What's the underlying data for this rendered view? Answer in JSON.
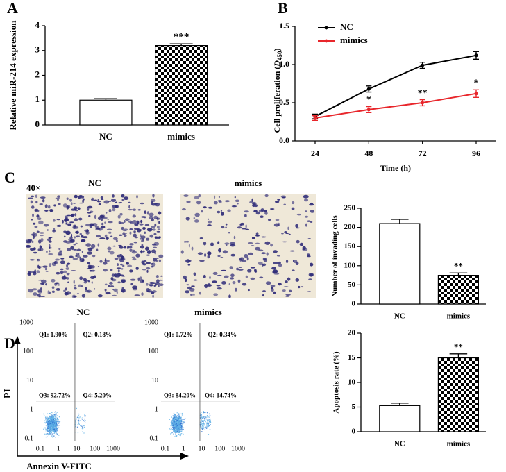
{
  "chart_data": [
    {
      "panel": "A",
      "type": "bar",
      "y_label": "Relative miR-214 expression",
      "categories": [
        "NC",
        "mimics"
      ],
      "values": [
        1.0,
        3.2
      ],
      "errors": [
        0.06,
        0.07
      ],
      "significance": [
        null,
        "***"
      ],
      "fills": [
        "white",
        "checkerboard"
      ],
      "ylim": [
        0,
        4
      ],
      "yticks": [
        0,
        1,
        2,
        3,
        4
      ]
    },
    {
      "panel": "B",
      "type": "line",
      "x_label": "Time (h)",
      "y_label": [
        "Cell proliferation (",
        "D",
        "450",
        ")"
      ],
      "x": [
        24,
        48,
        72,
        96
      ],
      "xlim": [
        15,
        105
      ],
      "xticks": [
        24,
        48,
        72,
        96
      ],
      "ylim": [
        0,
        1.5
      ],
      "yticks": [
        {
          "value": 0,
          "label": "0.0"
        },
        0.5,
        {
          "value": 1,
          "label": "1.0"
        },
        1.5
      ],
      "legend": "upper-left",
      "series": [
        {
          "name": "NC",
          "color": "#000000",
          "values": [
            0.32,
            0.68,
            0.99,
            1.12
          ],
          "errors": [
            0.03,
            0.04,
            0.04,
            0.05
          ]
        },
        {
          "name": "mimics",
          "color": "#e8262b",
          "values": [
            0.3,
            0.41,
            0.5,
            0.62
          ],
          "errors": [
            0.03,
            0.04,
            0.04,
            0.05
          ],
          "significance": [
            null,
            "*",
            "**",
            "*"
          ]
        }
      ]
    },
    {
      "panel": "C",
      "type": "micrographs",
      "magnification": "40×",
      "titles": [
        "NC",
        "mimics"
      ]
    },
    {
      "type": "bar",
      "y_label": "Number of invading cells",
      "categories": [
        "NC",
        "mimics"
      ],
      "values": [
        210,
        75
      ],
      "errors": [
        11,
        6
      ],
      "significance": [
        null,
        "**"
      ],
      "fills": [
        "white",
        "checkerboard"
      ],
      "ylim": [
        0,
        250
      ],
      "yticks": [
        0,
        50,
        100,
        150,
        200,
        250
      ]
    },
    {
      "panel": "D",
      "type": "flow",
      "x_label": "Annexin V-FITC",
      "y_label": "PI",
      "log": true,
      "xlim": [
        0.1,
        1000
      ],
      "ylim": [
        0.1,
        1000
      ],
      "xticks": [
        0.1,
        1,
        10,
        100,
        1000
      ],
      "yticks": [
        0.1,
        1,
        10,
        100,
        1000
      ],
      "gates": {
        "x": 8,
        "y": 2
      },
      "plots": [
        {
          "title": "NC",
          "quadrants": [
            "Q1: 1.90%",
            "Q2: 0.18%",
            "Q3: 92.72%",
            "Q4: 5.20%"
          ]
        },
        {
          "title": "mimics",
          "quadrants": [
            "Q1: 0.72%",
            "Q2: 0.34%",
            "Q3: 84.20%",
            "Q4: 14.74%"
          ]
        }
      ]
    },
    {
      "type": "bar",
      "y_label": "Apoptosis rate (%)",
      "categories": [
        "NC",
        "mimics"
      ],
      "values": [
        5.3,
        15.0
      ],
      "errors": [
        0.5,
        0.8
      ],
      "significance": [
        null,
        "**"
      ],
      "fills": [
        "white",
        "checkerboard"
      ],
      "ylim": [
        0,
        20
      ],
      "yticks": [
        0,
        5,
        10,
        15,
        20
      ]
    }
  ]
}
